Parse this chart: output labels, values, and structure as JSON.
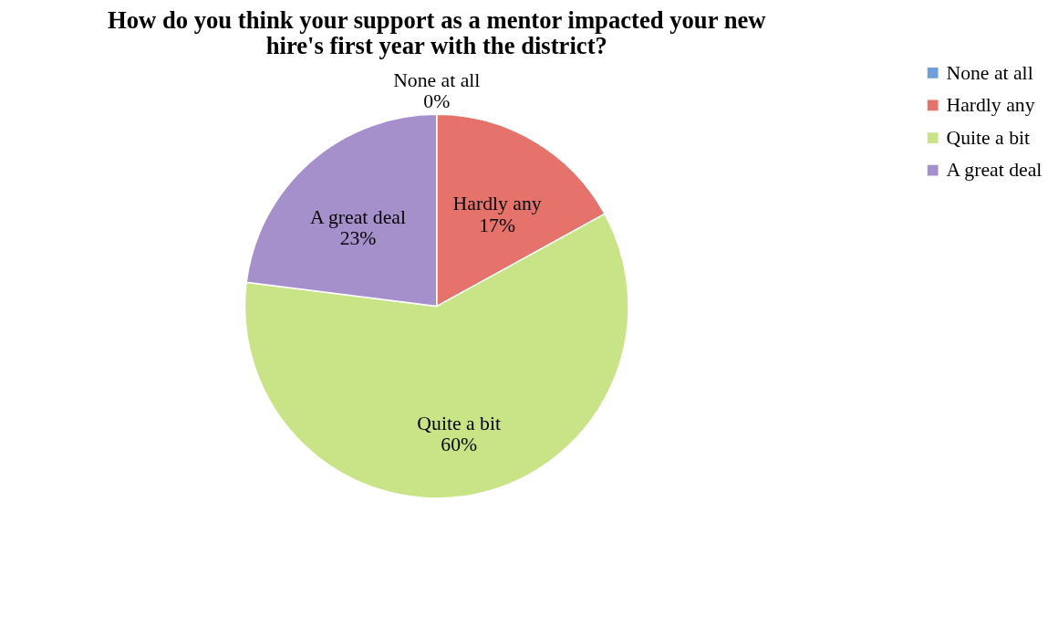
{
  "chart_data": {
    "type": "pie",
    "title": "How do you think your support as a mentor impacted your new hire's first year with the district?",
    "categories": [
      "None at all",
      "Hardly any",
      "Quite a bit",
      "A great deal"
    ],
    "values": [
      0,
      17,
      60,
      23
    ],
    "value_labels": [
      "0%",
      "17%",
      "60%",
      "23%"
    ],
    "colors": [
      "#6fa0dc",
      "#e5736b",
      "#c9e487",
      "#a690cc"
    ],
    "legend": "right"
  }
}
